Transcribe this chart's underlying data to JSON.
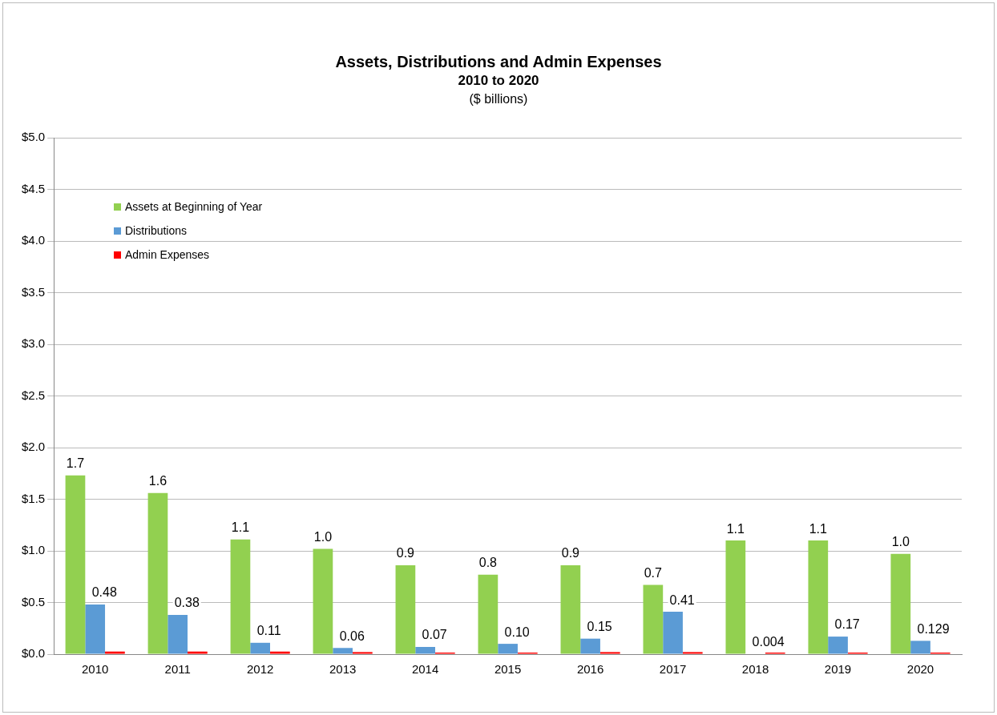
{
  "chart_data": {
    "type": "bar",
    "title": "Assets, Distributions and Admin Expenses",
    "subtitle": "2010 to 2020",
    "annotations": [
      "($ billions)"
    ],
    "categories": [
      "2010",
      "2011",
      "2012",
      "2013",
      "2014",
      "2015",
      "2016",
      "2017",
      "2018",
      "2019",
      "2020"
    ],
    "series": [
      {
        "name": "Assets at Beginning of Year",
        "color": "#92d050",
        "values": [
          1.73,
          1.56,
          1.11,
          1.02,
          0.86,
          0.77,
          0.86,
          0.67,
          1.1,
          1.1,
          0.97
        ],
        "value_labels": [
          "1.7",
          "1.6",
          "1.1",
          "1.0",
          "0.9",
          "0.8",
          "0.9",
          "0.7",
          "1.1",
          "1.1",
          "1.0"
        ]
      },
      {
        "name": "Distributions",
        "color": "#5b9bd5",
        "values": [
          0.48,
          0.38,
          0.11,
          0.06,
          0.07,
          0.1,
          0.15,
          0.41,
          0.004,
          0.17,
          0.129
        ],
        "value_labels": [
          "0.48",
          "0.38",
          "0.11",
          "0.06",
          "0.07",
          "0.10",
          "0.15",
          "0.41",
          "0.004",
          "0.17",
          "0.129"
        ]
      },
      {
        "name": "Admin Expenses",
        "color": "#ff0000",
        "values": [
          0.025,
          0.025,
          0.025,
          0.02,
          0.015,
          0.015,
          0.02,
          0.02,
          0.015,
          0.015,
          0.015
        ]
      }
    ],
    "ylim": [
      0,
      5
    ],
    "yticks": [
      {
        "value": 0,
        "label": "$0.0"
      },
      {
        "value": 0.5,
        "label": "$0.5"
      },
      {
        "value": 1,
        "label": "$1.0"
      },
      {
        "value": 1.5,
        "label": "$1.5"
      },
      {
        "value": 2,
        "label": "$2.0"
      },
      {
        "value": 2.5,
        "label": "$2.5"
      },
      {
        "value": 3,
        "label": "$3.0"
      },
      {
        "value": 3.5,
        "label": "$3.5"
      },
      {
        "value": 4,
        "label": "$4.0"
      },
      {
        "value": 4.5,
        "label": "$4.5"
      },
      {
        "value": 5,
        "label": "$5.0"
      }
    ],
    "grid": "y",
    "legend": "top left"
  }
}
